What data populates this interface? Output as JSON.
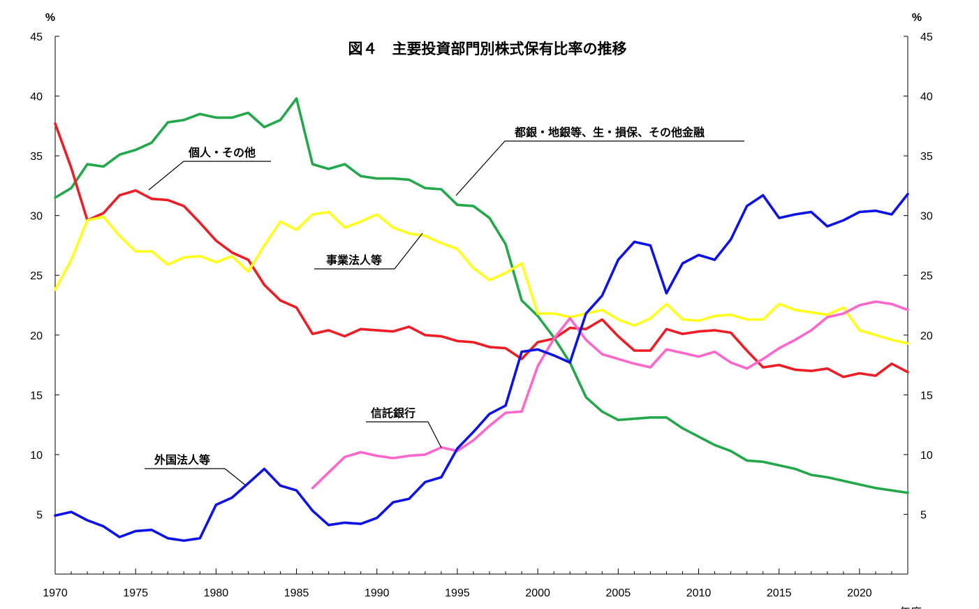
{
  "chart_data": {
    "type": "line",
    "title": "図４　主要投資部門別株式保有比率の推移",
    "y_unit_left": "%",
    "y_unit_right": "%",
    "xlabel_partial": "年度",
    "xlim": [
      1970,
      2023
    ],
    "ylim": [
      0,
      45
    ],
    "x_ticks": [
      1970,
      1975,
      1980,
      1985,
      1990,
      1995,
      2000,
      2005,
      2010,
      2015,
      2020
    ],
    "y_ticks": [
      5,
      10,
      15,
      20,
      25,
      30,
      35,
      40,
      45
    ],
    "grid": false,
    "series": [
      {
        "name": "都銀・地銀等、生・損保、その他金融",
        "color": "#22a84a",
        "start_year": 1970,
        "values": [
          31.5,
          32.3,
          34.3,
          34.1,
          35.1,
          35.5,
          36.1,
          37.8,
          38.0,
          38.5,
          38.2,
          38.2,
          38.6,
          37.4,
          38.0,
          39.8,
          34.3,
          33.9,
          34.3,
          33.3,
          33.1,
          33.1,
          33.0,
          32.3,
          32.2,
          30.9,
          30.8,
          29.8,
          27.6,
          22.9,
          21.6,
          19.8,
          17.7,
          14.8,
          13.6,
          12.9,
          13.0,
          13.1,
          13.1,
          12.2,
          11.5,
          10.8,
          10.3,
          9.5,
          9.4,
          9.1,
          8.8,
          8.3,
          8.1,
          7.8,
          7.5,
          7.2,
          7.0,
          6.8
        ]
      },
      {
        "name": "個人・その他",
        "color": "#ee1c24",
        "start_year": 1970,
        "values": [
          37.7,
          34.0,
          29.6,
          30.2,
          31.7,
          32.1,
          31.4,
          31.3,
          30.8,
          29.4,
          27.9,
          26.9,
          26.3,
          24.2,
          22.9,
          22.3,
          20.1,
          20.4,
          19.9,
          20.5,
          20.4,
          20.3,
          20.7,
          20.0,
          19.9,
          19.5,
          19.4,
          19.0,
          18.9,
          18.0,
          19.4,
          19.7,
          20.6,
          20.5,
          21.3,
          19.9,
          18.7,
          18.7,
          20.5,
          20.1,
          20.3,
          20.4,
          20.2,
          18.7,
          17.3,
          17.5,
          17.1,
          17.0,
          17.2,
          16.5,
          16.8,
          16.6,
          17.6,
          16.9
        ]
      },
      {
        "name": "事業法人等",
        "color": "#ffff1a",
        "start_year": 1970,
        "values": [
          23.8,
          26.3,
          29.6,
          29.9,
          28.3,
          27.0,
          27.0,
          25.9,
          26.5,
          26.6,
          26.1,
          26.6,
          25.3,
          27.5,
          29.5,
          28.8,
          30.1,
          30.3,
          29.0,
          29.5,
          30.1,
          29.0,
          28.5,
          28.3,
          27.7,
          27.2,
          25.6,
          24.6,
          25.2,
          26.0,
          21.8,
          21.8,
          21.5,
          21.8,
          22.1,
          21.3,
          20.8,
          21.4,
          22.6,
          21.3,
          21.2,
          21.6,
          21.7,
          21.3,
          21.3,
          22.6,
          22.1,
          21.9,
          21.7,
          22.3,
          20.4,
          20.0,
          19.6,
          19.3
        ]
      },
      {
        "name": "信託銀行",
        "color": "#ff66cc",
        "start_year": 1986,
        "values": [
          7.2,
          8.5,
          9.8,
          10.2,
          9.9,
          9.7,
          9.9,
          10.0,
          10.6,
          10.3,
          11.2,
          12.4,
          13.5,
          13.6,
          17.4,
          19.7,
          21.4,
          19.6,
          18.4,
          18.0,
          17.6,
          17.3,
          18.8,
          18.5,
          18.2,
          18.6,
          17.7,
          17.2,
          18.0,
          18.9,
          19.6,
          20.4,
          21.5,
          21.8,
          22.5,
          22.8,
          22.6,
          22.1
        ]
      },
      {
        "name": "外国法人等",
        "color": "#0d12e6",
        "start_year": 1970,
        "values": [
          4.9,
          5.2,
          4.5,
          4.0,
          3.1,
          3.6,
          3.7,
          3.0,
          2.8,
          3.0,
          5.8,
          6.4,
          7.6,
          8.8,
          7.4,
          7.0,
          5.3,
          4.1,
          4.3,
          4.2,
          4.7,
          6.0,
          6.3,
          7.7,
          8.1,
          10.5,
          11.9,
          13.4,
          14.1,
          18.6,
          18.8,
          18.3,
          17.7,
          21.8,
          23.3,
          26.3,
          27.8,
          27.5,
          23.5,
          26.0,
          26.7,
          26.3,
          28.0,
          30.8,
          31.7,
          29.8,
          30.1,
          30.3,
          29.1,
          29.6,
          30.3,
          30.4,
          30.1,
          31.8
        ]
      }
    ],
    "annotations": [
      {
        "text": "個人・その他",
        "series": "個人・その他"
      },
      {
        "text": "都銀・地銀等、生・損保、その他金融",
        "series": "都銀・地銀等、生・損保、その他金融"
      },
      {
        "text": "事業法人等",
        "series": "事業法人等"
      },
      {
        "text": "信託銀行",
        "series": "信託銀行"
      },
      {
        "text": "外国法人等",
        "series": "外国法人等"
      }
    ]
  }
}
